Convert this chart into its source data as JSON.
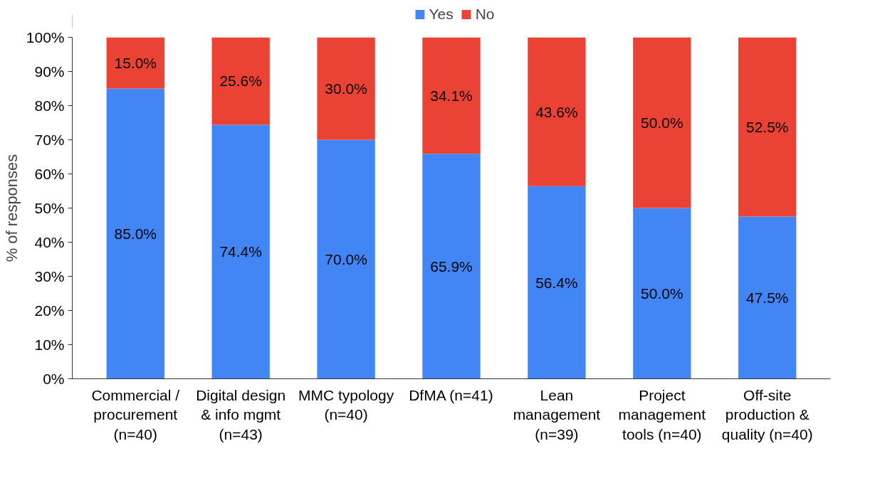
{
  "chart_data": {
    "type": "bar",
    "stacked": true,
    "ylabel": "% of responses",
    "categories": [
      "Commercial /\nprocurement\n(n=40)",
      "Digital design\n& info mgmt\n(n=43)",
      "MMC typology\n(n=40)",
      "DfMA (n=41)",
      "Lean\nmanagement\n(n=39)",
      "Project\nmanagement\ntools (n=40)",
      "Off-site\nproduction &\nquality (n=40)"
    ],
    "series": [
      {
        "name": "Yes",
        "color": "#4285f4",
        "values": [
          85.0,
          74.4,
          70.0,
          65.9,
          56.4,
          50.0,
          47.5
        ],
        "value_labels": [
          "85.0%",
          "74.4%",
          "70.0%",
          "65.9%",
          "56.4%",
          "50.0%",
          "47.5%"
        ]
      },
      {
        "name": "No",
        "color": "#ea4335",
        "values": [
          15.0,
          25.6,
          30.0,
          34.1,
          43.6,
          50.0,
          52.5
        ],
        "value_labels": [
          "15.0%",
          "25.6%",
          "30.0%",
          "34.1%",
          "43.6%",
          "50.0%",
          "52.5%"
        ]
      }
    ],
    "ylim": [
      0,
      100
    ],
    "yticks": [
      {
        "value": 0,
        "label": "0%"
      },
      {
        "value": 10,
        "label": "10%"
      },
      {
        "value": 20,
        "label": "20%"
      },
      {
        "value": 30,
        "label": "30%"
      },
      {
        "value": 40,
        "label": "40%"
      },
      {
        "value": 50,
        "label": "50%"
      },
      {
        "value": 60,
        "label": "60%"
      },
      {
        "value": 70,
        "label": "70%"
      },
      {
        "value": 80,
        "label": "80%"
      },
      {
        "value": 90,
        "label": "90%"
      },
      {
        "value": 100,
        "label": "100%"
      }
    ],
    "grid": false,
    "legend": "top"
  }
}
